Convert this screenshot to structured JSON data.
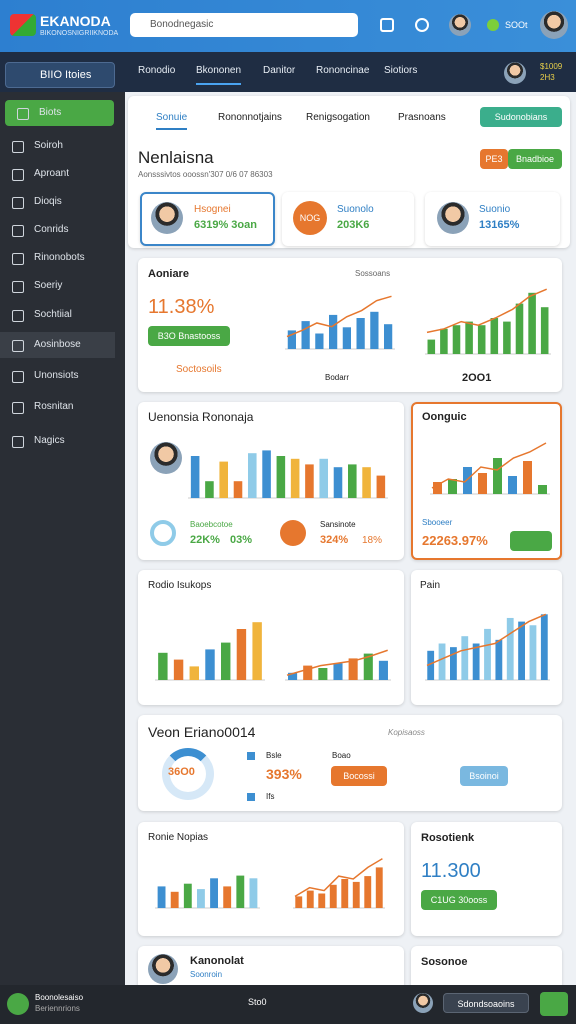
{
  "header": {
    "logo": "EKANODA",
    "logo_sub": "BIKONOSNIGRIIKNODA",
    "search": "Bonodnegasic",
    "badge": "SOOt"
  },
  "nav": {
    "menu": "BIIO Itoies",
    "tabs": [
      "Ronodio",
      "Bkononen",
      "Danitor",
      "Rononcinae",
      "Siotiors"
    ],
    "balance": "$1009",
    "balance_sub": "2H3"
  },
  "sidebar": [
    "Biots",
    "Soiroh",
    "Aproant",
    "Dioqis",
    "Conrids",
    "Rinonobots",
    "Soeriy",
    "Sochtiial",
    "Aosinbose",
    "Unonsiots",
    "Rosnitan",
    "Nagics"
  ],
  "summary": {
    "tabs": [
      "Sonuie",
      "Rononnotjains",
      "Renigsogation",
      "Prasnoans"
    ],
    "action": "Sudonobians",
    "title": "Nenlaisna",
    "subtitle": "Aonsssivtos ooossn'307 0/6 07 86303",
    "btn1": "PE3",
    "btn2": "Bnadbioe",
    "cards": [
      {
        "label": "Hsognei",
        "value": "6319% 3oan"
      },
      {
        "badge": "NOG",
        "label": "Suonolo",
        "value": "203K6"
      },
      {
        "label": "Suonio",
        "value": "13165%"
      }
    ]
  },
  "overview": {
    "title": "Aoniare",
    "value": "11.38%",
    "button": "B3O Bnastooss",
    "note": "Soctosoils",
    "chart_label": "Sossoans",
    "axis_label": "Bodarr",
    "year": "2OO1",
    "bars": [
      30,
      45,
      25,
      55,
      35,
      50,
      60,
      40
    ],
    "line": [
      20,
      30,
      42,
      36,
      52,
      62,
      78,
      85
    ],
    "bars2": [
      20,
      35,
      40,
      45,
      40,
      50,
      45,
      70,
      85,
      65
    ],
    "line2": [
      30,
      35,
      45,
      40,
      50,
      62,
      80,
      90
    ]
  },
  "compare": {
    "title": "Uenonsia Rononaja",
    "bars": [
      75,
      30,
      65,
      30,
      80,
      85,
      75,
      70,
      60,
      70,
      55,
      60,
      55,
      40
    ],
    "stat1": {
      "label": "Baoebcotoe",
      "value": "22K%",
      "delta": "03%"
    },
    "stat2": {
      "label": "Sansinote",
      "value": "324%",
      "delta": "18%"
    }
  },
  "side": {
    "title": "Oonguic",
    "bars": [
      20,
      25,
      45,
      35,
      60,
      30,
      55,
      15
    ],
    "line": [
      10,
      25,
      20,
      45,
      40,
      60,
      70,
      85
    ],
    "label": "Sbooeer",
    "value": "22263.97%"
  },
  "rodio": {
    "title": "Rodio Isukops",
    "bars": [
      40,
      30,
      20,
      45,
      55,
      75,
      85
    ],
    "bars2": [
      15,
      30,
      25,
      35,
      45,
      55,
      40
    ],
    "line": [
      10,
      20,
      30,
      35,
      40,
      50,
      62
    ]
  },
  "pain": {
    "title": "Pain",
    "bars": [
      40,
      50,
      45,
      60,
      50,
      70,
      55,
      85,
      80,
      75,
      90
    ],
    "line": [
      20,
      30,
      40,
      45,
      50,
      65,
      80,
      90
    ]
  },
  "veon": {
    "title": "Veon Eriano0014",
    "note": "Kopisaoss",
    "donut": "36O0",
    "value": "393%",
    "button": "Bocossi",
    "button2": "Bsoinoi",
    "legend": [
      "Bsle",
      "Boao",
      "Ifs"
    ]
  },
  "ronie": {
    "title": "Ronie Nopias",
    "bars": [
      40,
      30,
      45,
      35,
      55,
      40,
      60,
      55
    ],
    "bars2": [
      20,
      30,
      25,
      40,
      50,
      45,
      55,
      70
    ],
    "line": [
      20,
      35,
      30,
      55,
      50,
      70,
      85
    ]
  },
  "result": {
    "title": "Rosotienk",
    "value": "11.300",
    "button": "C1UG 30ooss"
  },
  "bottom": {
    "left": "Kanonolat",
    "left_sub": "Soonroin",
    "right": "Sosonoe"
  },
  "footer": {
    "title": "Boonolesaiso",
    "sub": "Beriennrions",
    "count": "Sto0",
    "button": "Sdondsoaoins"
  }
}
